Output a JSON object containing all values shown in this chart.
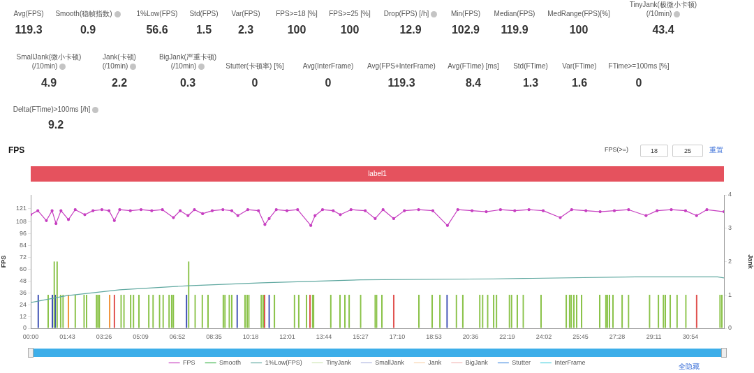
{
  "chart_data": [
    {
      "type": "other",
      "categories": [
        "Avg(FPS)",
        "Smooth(稳帧指数)",
        "1%Low(FPS)",
        "Std(FPS)",
        "Var(FPS)",
        "FPS>=18 [%]",
        "FPS>=25 [%]",
        "Drop(FPS) [/h]",
        "Min(FPS)",
        "Median(FPS)",
        "MedRange(FPS)[%]",
        "TinyJank(极微小卡顿)\n(/10min)",
        "SmallJank(微小卡顿)\n(/10min)",
        "Jank(卡顿)\n(/10min)",
        "BigJank(严重卡顿)\n(/10min)",
        "Stutter(卡顿率) [%]",
        "Avg(InterFrame)",
        "Avg(FPS+InterFrame)",
        "Avg(FTime) [ms]",
        "Std(FTime)",
        "Var(FTime)",
        "FTime>=100ms [%]",
        "Delta(FTime)>100ms [/h]"
      ],
      "values": [
        119.3,
        0.9,
        56.6,
        1.5,
        2.3,
        100,
        100,
        12.9,
        102.9,
        119.9,
        100,
        43.4,
        4.9,
        2.2,
        0.3,
        0,
        0,
        119.3,
        8.4,
        1.3,
        1.6,
        0,
        9.2
      ],
      "data_labels": true
    },
    {
      "type": "line",
      "title": "FPS",
      "ylabel": "FPS",
      "y2label": "Jank",
      "legend": "bottom",
      "xlim": [
        0,
        1948
      ],
      "xticks": [
        {
          "value": 0,
          "label": "00:00"
        },
        {
          "value": 103,
          "label": "01:43"
        },
        {
          "value": 206,
          "label": "03:26"
        },
        {
          "value": 309,
          "label": "05:09"
        },
        {
          "value": 412,
          "label": "06:52"
        },
        {
          "value": 515,
          "label": "08:35"
        },
        {
          "value": 618,
          "label": "10:18"
        },
        {
          "value": 721,
          "label": "12:01"
        },
        {
          "value": 824,
          "label": "13:44"
        },
        {
          "value": 927,
          "label": "15:27"
        },
        {
          "value": 1030,
          "label": "17:10"
        },
        {
          "value": 1133,
          "label": "18:53"
        },
        {
          "value": 1236,
          "label": "20:36"
        },
        {
          "value": 1339,
          "label": "22:19"
        },
        {
          "value": 1442,
          "label": "24:02"
        },
        {
          "value": 1545,
          "label": "25:45"
        },
        {
          "value": 1648,
          "label": "27:28"
        },
        {
          "value": 1751,
          "label": "29:11"
        },
        {
          "value": 1854,
          "label": "30:54"
        }
      ],
      "ylim": [
        0,
        135
      ],
      "yticks": [
        0,
        12,
        24,
        36,
        48,
        60,
        72,
        84,
        96,
        108,
        121
      ],
      "y2lim": [
        0,
        4
      ],
      "y2ticks": [
        0,
        1,
        2,
        3,
        4
      ],
      "bands": [
        {
          "axis": "x",
          "from": 0,
          "to": 1948,
          "label": "label1"
        }
      ],
      "annotations": [
        "FPS(>=)",
        "18",
        "25",
        "重置",
        "全隐藏"
      ],
      "series": [
        {
          "name": "FPS",
          "color": "#c63ec0",
          "marker": "circle",
          "axis": "y",
          "x": [
            0,
            20,
            44,
            60,
            71,
            85,
            106,
            125,
            152,
            175,
            200,
            220,
            235,
            250,
            280,
            310,
            340,
            370,
            401,
            420,
            442,
            460,
            483,
            510,
            540,
            565,
            582,
            610,
            640,
            658,
            670,
            690,
            720,
            750,
            787,
            799,
            820,
            850,
            870,
            900,
            940,
            968,
            990,
            1020,
            1050,
            1090,
            1130,
            1171,
            1200,
            1240,
            1280,
            1320,
            1360,
            1400,
            1440,
            1488,
            1520,
            1560,
            1600,
            1640,
            1680,
            1729,
            1760,
            1800,
            1840,
            1871,
            1900,
            1948
          ],
          "values": [
            115,
            119,
            109,
            119,
            106,
            119,
            110,
            120,
            115,
            119,
            120,
            119,
            109,
            120,
            119,
            120,
            119,
            120,
            112,
            119,
            114,
            120,
            116,
            119,
            120,
            119,
            114,
            120,
            119,
            105,
            111,
            120,
            119,
            120,
            104,
            114,
            120,
            119,
            115,
            120,
            119,
            111,
            120,
            111,
            119,
            120,
            119,
            104,
            120,
            119,
            118,
            120,
            119,
            120,
            119,
            112,
            120,
            119,
            118,
            119,
            120,
            114,
            119,
            120,
            119,
            114,
            120,
            118
          ]
        },
        {
          "name": "Smooth",
          "color": "#3cb44b",
          "axis": "y2"
        },
        {
          "name": "1%Low(FPS)",
          "color": "#5fa8a0",
          "marker": "none",
          "axis": "y",
          "x": [
            0,
            100,
            250,
            441,
            650,
            927,
            1300,
            1700,
            1930,
            1948
          ],
          "values": [
            26,
            33,
            39,
            43,
            46,
            49,
            50,
            52,
            52,
            51
          ]
        },
        {
          "name": "TinyJank",
          "type": "bar",
          "color": "#8bc34a",
          "axis": "y2",
          "x": [
            49,
            66,
            74,
            84,
            91,
            125,
            150,
            157,
            185,
            189,
            193,
            254,
            262,
            281,
            289,
            304,
            332,
            344,
            362,
            372,
            389,
            396,
            401,
            444,
            462,
            482,
            498,
            541,
            546,
            558,
            565,
            602,
            608,
            613,
            648,
            653,
            685,
            741,
            753,
            775,
            792,
            795,
            843,
            869,
            883,
            895,
            927,
            968,
            972,
            987,
            1091,
            1128,
            1150,
            1196,
            1214,
            1262,
            1270,
            1284,
            1301,
            1309,
            1345,
            1351,
            1367,
            1384,
            1434,
            1505,
            1514,
            1519,
            1526,
            1534,
            1548,
            1599,
            1616,
            1620,
            1626,
            1636,
            1662,
            1680,
            1739,
            1764,
            1778,
            1783,
            1797,
            1816,
            1841,
            1937,
            1942
          ],
          "values": [
            1,
            2,
            2,
            1,
            1,
            1,
            1,
            1,
            1,
            1,
            1,
            1,
            1,
            1,
            1,
            1,
            1,
            1,
            1,
            1,
            1,
            1,
            1,
            2,
            1,
            1,
            1,
            1,
            1,
            1,
            1,
            1,
            1,
            1,
            1,
            1,
            1,
            1,
            1,
            1,
            1,
            1,
            1,
            1,
            1,
            1,
            1,
            1,
            1,
            1,
            1,
            1,
            1,
            1,
            1,
            1,
            1,
            1,
            1,
            1,
            1,
            1,
            1,
            1,
            1,
            1,
            1,
            1,
            1,
            1,
            1,
            1,
            1,
            1,
            1,
            1,
            1,
            1,
            1,
            1,
            1,
            1,
            1,
            1,
            1,
            1,
            1
          ]
        },
        {
          "name": "SmallJank",
          "type": "bar",
          "color": "#3f51b5",
          "axis": "y2",
          "x": [
            21,
            61,
            69,
            438,
            580,
            670,
            1170
          ],
          "values": [
            1,
            1,
            1,
            1,
            1,
            1,
            1
          ]
        },
        {
          "name": "Jank",
          "type": "bar",
          "color": "#f0963c",
          "axis": "y2",
          "x": [
            106,
            222
          ],
          "values": [
            1,
            1
          ]
        },
        {
          "name": "BigJank",
          "type": "bar",
          "color": "#e0524f",
          "axis": "y2",
          "x": [
            235,
            657,
            785,
            1020,
            1871
          ],
          "values": [
            1,
            1,
            1,
            1,
            1
          ]
        },
        {
          "name": "Stutter",
          "color": "#4a90e2",
          "axis": "y2"
        },
        {
          "name": "InterFrame",
          "color": "#4dd0e1",
          "axis": "y2"
        }
      ]
    }
  ]
}
